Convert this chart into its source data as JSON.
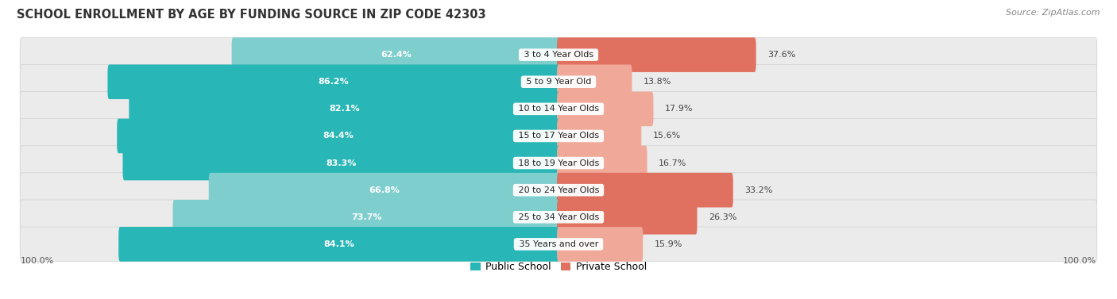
{
  "title": "SCHOOL ENROLLMENT BY AGE BY FUNDING SOURCE IN ZIP CODE 42303",
  "source": "Source: ZipAtlas.com",
  "categories": [
    "3 to 4 Year Olds",
    "5 to 9 Year Old",
    "10 to 14 Year Olds",
    "15 to 17 Year Olds",
    "18 to 19 Year Olds",
    "20 to 24 Year Olds",
    "25 to 34 Year Olds",
    "35 Years and over"
  ],
  "public_values": [
    62.4,
    86.2,
    82.1,
    84.4,
    83.3,
    66.8,
    73.7,
    84.1
  ],
  "private_values": [
    37.6,
    13.8,
    17.9,
    15.6,
    16.7,
    33.2,
    26.3,
    15.9
  ],
  "public_color_strong": "#29b6b6",
  "public_color_light": "#7ecece",
  "private_color_strong": "#e07060",
  "private_color_light": "#f0a898",
  "row_bg_color": "#e8e8e8",
  "legend_public": "Public School",
  "legend_private": "Private School",
  "title_fontsize": 10.5,
  "source_fontsize": 8,
  "label_fontsize": 8,
  "category_fontsize": 8
}
